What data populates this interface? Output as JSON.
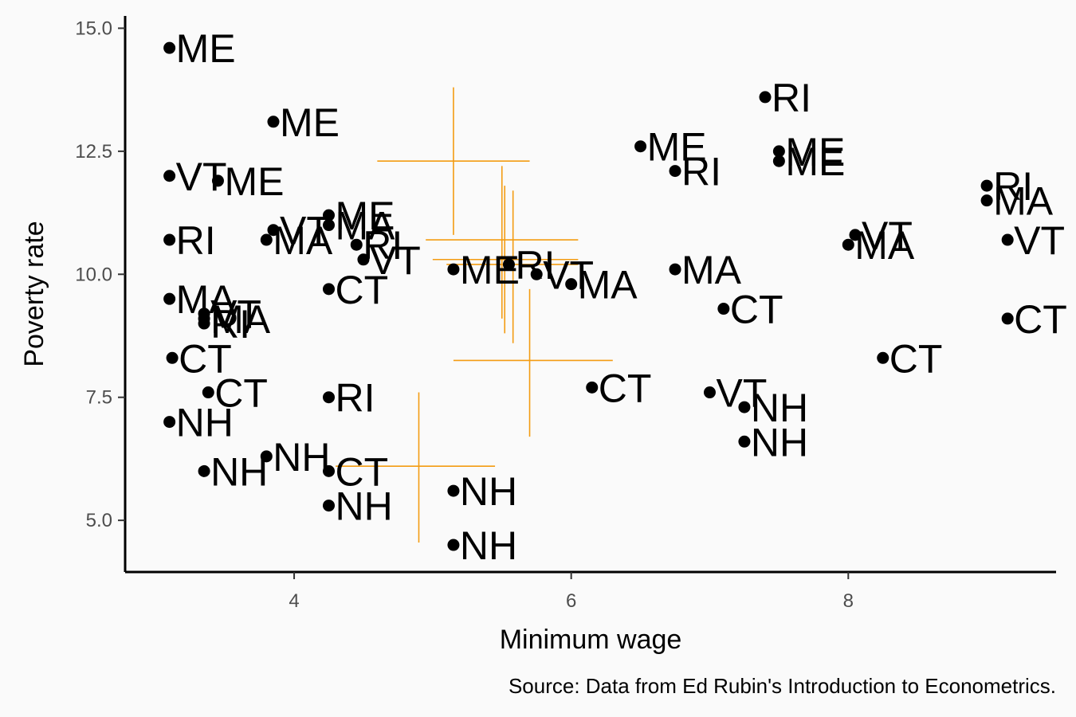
{
  "chart_data": {
    "type": "scatter",
    "title": "",
    "xlabel": "Minimum wage",
    "ylabel": "Poverty rate",
    "caption": "Source: Data from Ed Rubin's Introduction to Econometrics.",
    "xlim": [
      2.78,
      9.5
    ],
    "ylim": [
      3.95,
      15.25
    ],
    "x_ticks": [
      {
        "value": 4,
        "label": "4"
      },
      {
        "value": 6,
        "label": "6"
      },
      {
        "value": 8,
        "label": "8"
      }
    ],
    "y_ticks": [
      {
        "value": 5,
        "label": "5.0"
      },
      {
        "value": 7.5,
        "label": "7.5"
      },
      {
        "value": 10,
        "label": "10.0"
      },
      {
        "value": 12.5,
        "label": "12.5"
      },
      {
        "value": 15,
        "label": "15.0"
      }
    ],
    "grid": false,
    "legend": "none",
    "colors": {
      "points": "#000000",
      "crosshair": "#f39c12",
      "background": "#fafafa"
    },
    "points": [
      {
        "state": "ME",
        "x": 3.1,
        "y": 14.6
      },
      {
        "state": "ME",
        "x": 3.85,
        "y": 13.1
      },
      {
        "state": "VT",
        "x": 3.1,
        "y": 12.0
      },
      {
        "state": "ME",
        "x": 3.45,
        "y": 11.9
      },
      {
        "state": "RI",
        "x": 3.1,
        "y": 10.7
      },
      {
        "state": "VT",
        "x": 3.85,
        "y": 10.9
      },
      {
        "state": "MA",
        "x": 3.8,
        "y": 10.7
      },
      {
        "state": "ME",
        "x": 4.25,
        "y": 11.2
      },
      {
        "state": "MA",
        "x": 4.25,
        "y": 11.0
      },
      {
        "state": "RI",
        "x": 4.45,
        "y": 10.6
      },
      {
        "state": "VT",
        "x": 4.5,
        "y": 10.3
      },
      {
        "state": "CT",
        "x": 4.25,
        "y": 9.7
      },
      {
        "state": "MA",
        "x": 3.1,
        "y": 9.5
      },
      {
        "state": "VT",
        "x": 3.35,
        "y": 9.2
      },
      {
        "state": "MA",
        "x": 3.35,
        "y": 9.1
      },
      {
        "state": "RI",
        "x": 3.35,
        "y": 9.0
      },
      {
        "state": "CT",
        "x": 3.12,
        "y": 8.3
      },
      {
        "state": "CT",
        "x": 3.38,
        "y": 7.6
      },
      {
        "state": "NH",
        "x": 3.1,
        "y": 7.0
      },
      {
        "state": "NH",
        "x": 3.35,
        "y": 6.0
      },
      {
        "state": "NH",
        "x": 3.8,
        "y": 6.3
      },
      {
        "state": "RI",
        "x": 4.25,
        "y": 7.5
      },
      {
        "state": "CT",
        "x": 4.25,
        "y": 6.0
      },
      {
        "state": "NH",
        "x": 4.25,
        "y": 5.3
      },
      {
        "state": "ME",
        "x": 5.15,
        "y": 10.1
      },
      {
        "state": "RI",
        "x": 5.55,
        "y": 10.2
      },
      {
        "state": "VT",
        "x": 5.75,
        "y": 10.0
      },
      {
        "state": "MA",
        "x": 6.0,
        "y": 9.8
      },
      {
        "state": "NH",
        "x": 5.15,
        "y": 5.6
      },
      {
        "state": "NH",
        "x": 5.15,
        "y": 4.5
      },
      {
        "state": "CT",
        "x": 6.15,
        "y": 7.7
      },
      {
        "state": "ME",
        "x": 6.5,
        "y": 12.6
      },
      {
        "state": "RI",
        "x": 6.75,
        "y": 12.1
      },
      {
        "state": "MA",
        "x": 6.75,
        "y": 10.1
      },
      {
        "state": "CT",
        "x": 7.1,
        "y": 9.3
      },
      {
        "state": "VT",
        "x": 7.0,
        "y": 7.6
      },
      {
        "state": "NH",
        "x": 7.25,
        "y": 7.3
      },
      {
        "state": "NH",
        "x": 7.25,
        "y": 6.6
      },
      {
        "state": "RI",
        "x": 7.4,
        "y": 13.6
      },
      {
        "state": "ME",
        "x": 7.5,
        "y": 12.5
      },
      {
        "state": "ME",
        "x": 7.5,
        "y": 12.3
      },
      {
        "state": "VT",
        "x": 8.05,
        "y": 10.8
      },
      {
        "state": "MA",
        "x": 8.0,
        "y": 10.6
      },
      {
        "state": "CT",
        "x": 8.25,
        "y": 8.3
      },
      {
        "state": "RI",
        "x": 9.0,
        "y": 11.8
      },
      {
        "state": "MA",
        "x": 9.0,
        "y": 11.5
      },
      {
        "state": "VT",
        "x": 9.15,
        "y": 10.7
      },
      {
        "state": "CT",
        "x": 9.15,
        "y": 9.1
      }
    ],
    "crosshairs": [
      {
        "x_range": [
          4.6,
          5.7
        ],
        "x": 5.15,
        "y_range": [
          10.8,
          13.8
        ],
        "y": 12.3
      },
      {
        "x_range": [
          4.95,
          6.05
        ],
        "x": 5.5,
        "y_range": [
          9.1,
          12.2
        ],
        "y": 10.7
      },
      {
        "x_range": [
          5.0,
          6.05
        ],
        "x": 5.52,
        "y_range": [
          8.8,
          11.8
        ],
        "y": 10.3
      },
      {
        "x_range": [
          5.1,
          6.05
        ],
        "x": 5.58,
        "y_range": [
          8.6,
          11.7
        ],
        "y": 10.2
      },
      {
        "x_range": [
          5.15,
          6.3
        ],
        "x": 5.7,
        "y_range": [
          6.7,
          9.7
        ],
        "y": 8.25
      },
      {
        "x_range": [
          4.3,
          5.45
        ],
        "x": 4.9,
        "y_range": [
          4.55,
          7.6
        ],
        "y": 6.1
      }
    ]
  }
}
